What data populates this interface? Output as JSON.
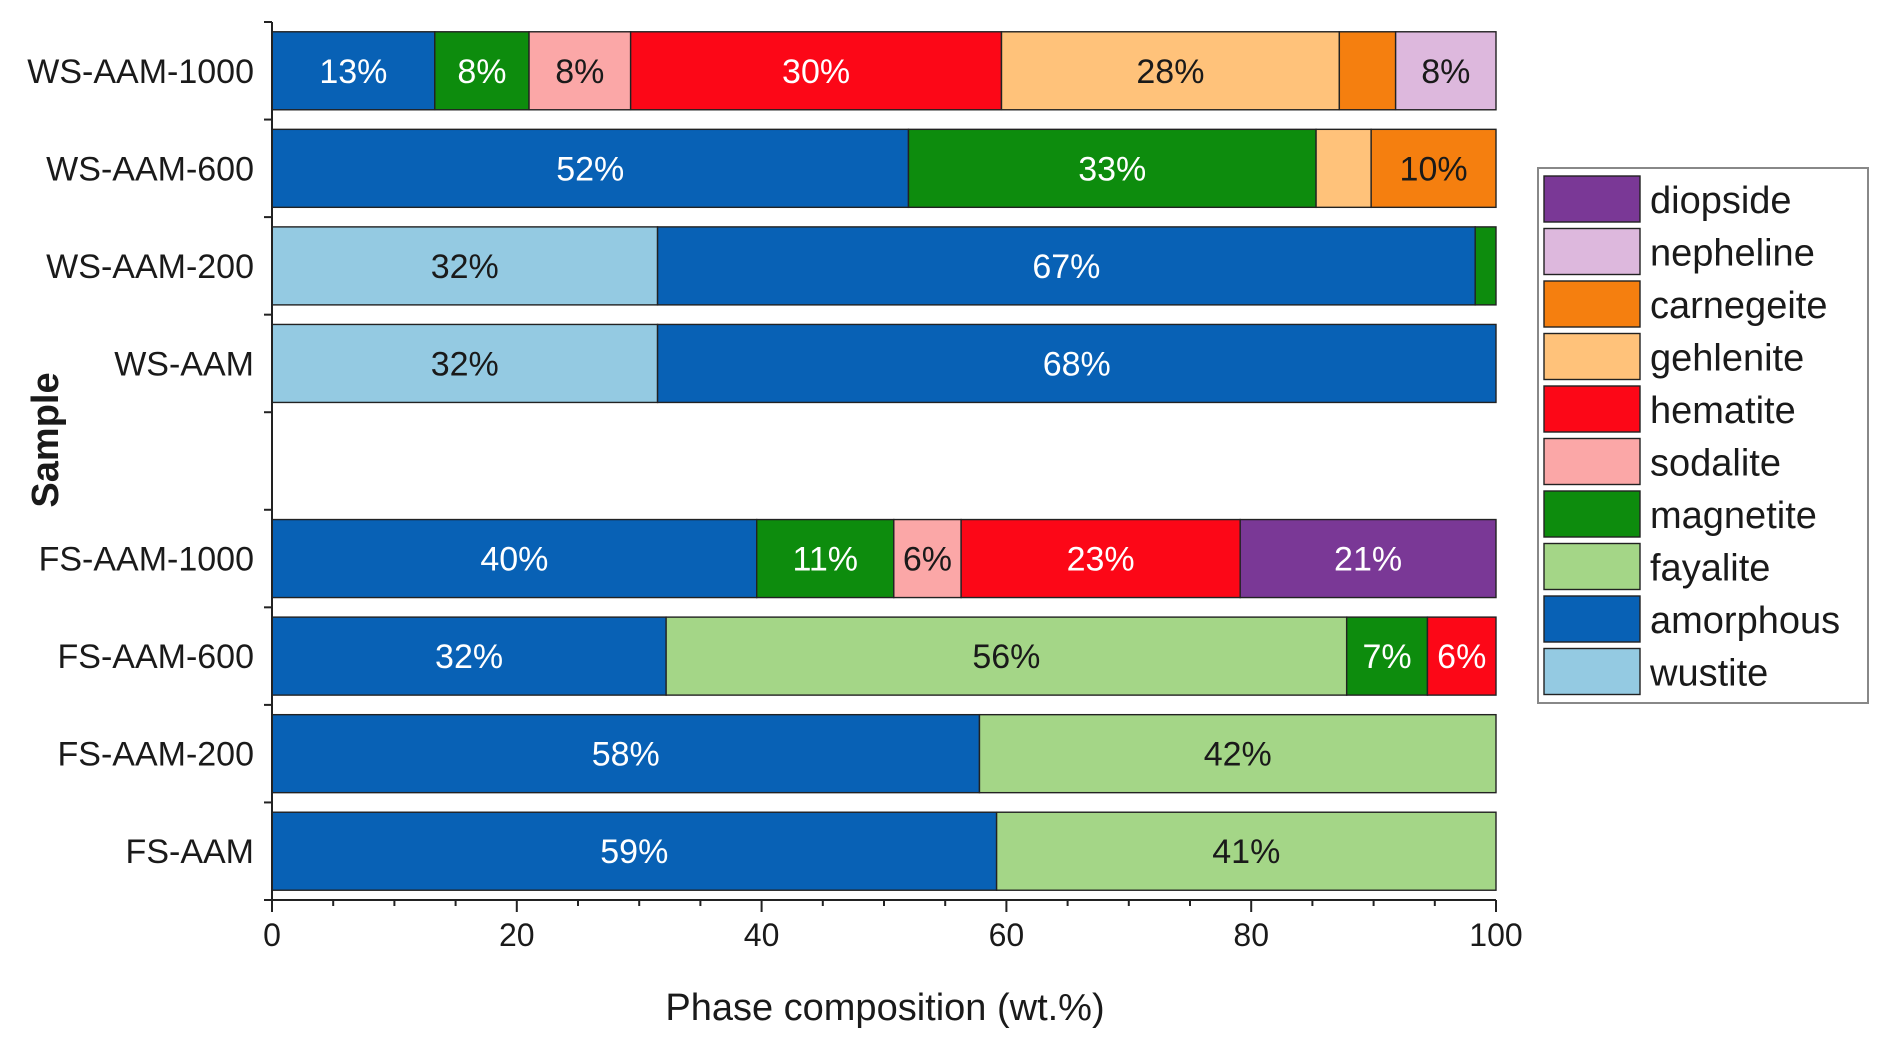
{
  "chart_data": {
    "type": "stacked-horizontal-bar",
    "xlabel": "Phase composition (wt.%)",
    "ylabel": "Sample",
    "xlim": [
      0,
      100
    ],
    "xticks": [
      "0",
      "20",
      "40",
      "60",
      "80",
      "100"
    ],
    "grid": false,
    "legend_position": "right",
    "phases": [
      {
        "name": "diopside",
        "color": "#7a3896",
        "label_color": "#ffffff"
      },
      {
        "name": "nepheline",
        "color": "#ddb8dd",
        "label_color": "#1a1a1a"
      },
      {
        "name": "carnegeite",
        "color": "#f57f0f",
        "label_color": "#1a1a1a"
      },
      {
        "name": "gehlenite",
        "color": "#ffc27a",
        "label_color": "#1a1a1a"
      },
      {
        "name": "hematite",
        "color": "#fc0717",
        "label_color": "#ffffff"
      },
      {
        "name": "sodalite",
        "color": "#fba7a7",
        "label_color": "#1a1a1a"
      },
      {
        "name": "magnetite",
        "color": "#0d8c0d",
        "label_color": "#ffffff"
      },
      {
        "name": "fayalite",
        "color": "#a4d687",
        "label_color": "#1a1a1a"
      },
      {
        "name": "amorphous",
        "color": "#0861b5",
        "label_color": "#ffffff"
      },
      {
        "name": "wustite",
        "color": "#94cae2",
        "label_color": "#1a1a1a"
      }
    ],
    "samples": [
      {
        "name": "WS-AAM-1000",
        "segments": [
          {
            "phase": "amorphous",
            "value": 13.3,
            "label": "13%"
          },
          {
            "phase": "magnetite",
            "value": 7.7,
            "label": "8%"
          },
          {
            "phase": "sodalite",
            "value": 8.3,
            "label": "8%"
          },
          {
            "phase": "hematite",
            "value": 30.3,
            "label": "30%"
          },
          {
            "phase": "gehlenite",
            "value": 27.6,
            "label": "28%"
          },
          {
            "phase": "carnegeite",
            "value": 4.6,
            "label": ""
          },
          {
            "phase": "nepheline",
            "value": 8.2,
            "label": "8%"
          }
        ]
      },
      {
        "name": "WS-AAM-600",
        "segments": [
          {
            "phase": "amorphous",
            "value": 52.0,
            "label": "52%"
          },
          {
            "phase": "magnetite",
            "value": 33.3,
            "label": "33%"
          },
          {
            "phase": "gehlenite",
            "value": 4.5,
            "label": ""
          },
          {
            "phase": "carnegeite",
            "value": 10.2,
            "label": "10%"
          }
        ]
      },
      {
        "name": "WS-AAM-200",
        "segments": [
          {
            "phase": "wustite",
            "value": 31.5,
            "label": "32%"
          },
          {
            "phase": "amorphous",
            "value": 66.8,
            "label": "67%"
          },
          {
            "phase": "magnetite",
            "value": 1.7,
            "label": ""
          }
        ]
      },
      {
        "name": "WS-AAM",
        "segments": [
          {
            "phase": "wustite",
            "value": 31.5,
            "label": "32%"
          },
          {
            "phase": "amorphous",
            "value": 68.5,
            "label": "68%"
          }
        ]
      },
      {
        "name": "",
        "segments": []
      },
      {
        "name": "FS-AAM-1000",
        "segments": [
          {
            "phase": "amorphous",
            "value": 39.6,
            "label": "40%"
          },
          {
            "phase": "magnetite",
            "value": 11.2,
            "label": "11%"
          },
          {
            "phase": "sodalite",
            "value": 5.5,
            "label": "6%"
          },
          {
            "phase": "hematite",
            "value": 22.8,
            "label": "23%"
          },
          {
            "phase": "diopside",
            "value": 20.9,
            "label": "21%"
          }
        ]
      },
      {
        "name": "FS-AAM-600",
        "segments": [
          {
            "phase": "amorphous",
            "value": 32.2,
            "label": "32%"
          },
          {
            "phase": "fayalite",
            "value": 55.6,
            "label": "56%"
          },
          {
            "phase": "magnetite",
            "value": 6.6,
            "label": "7%"
          },
          {
            "phase": "hematite",
            "value": 5.6,
            "label": "6%"
          }
        ]
      },
      {
        "name": "FS-AAM-200",
        "segments": [
          {
            "phase": "amorphous",
            "value": 57.8,
            "label": "58%"
          },
          {
            "phase": "fayalite",
            "value": 42.2,
            "label": "42%"
          }
        ]
      },
      {
        "name": "FS-AAM",
        "segments": [
          {
            "phase": "amorphous",
            "value": 59.2,
            "label": "59%"
          },
          {
            "phase": "fayalite",
            "value": 40.8,
            "label": "41%"
          }
        ]
      }
    ]
  }
}
